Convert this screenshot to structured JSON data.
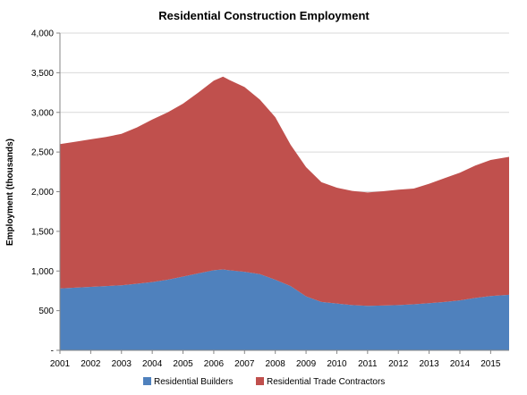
{
  "chart_data": {
    "type": "area",
    "stacked": true,
    "title": "Residential Construction Employment",
    "xlabel": "",
    "ylabel": "Employment (thousands)",
    "ylim": [
      0,
      4000
    ],
    "xlim": [
      2001,
      2015.6
    ],
    "y_ticks": [
      0,
      500,
      1000,
      1500,
      2000,
      2500,
      3000,
      3500,
      4000
    ],
    "y_tick_labels": [
      "-",
      "500",
      "1,000",
      "1,500",
      "2,000",
      "2,500",
      "3,000",
      "3,500",
      "4,000"
    ],
    "x_ticks": [
      2001,
      2002,
      2003,
      2004,
      2005,
      2006,
      2007,
      2008,
      2009,
      2010,
      2011,
      2012,
      2013,
      2014,
      2015
    ],
    "x_tick_labels": [
      "2001",
      "2002",
      "2003",
      "2004",
      "2005",
      "2006",
      "2007",
      "2008",
      "2009",
      "2010",
      "2011",
      "2012",
      "2013",
      "2014",
      "2015"
    ],
    "grid": "horizontal",
    "legend": "bottom",
    "x": [
      2001,
      2001.5,
      2002,
      2002.5,
      2003,
      2003.5,
      2004,
      2004.5,
      2005,
      2005.5,
      2006,
      2006.3,
      2006.5,
      2007,
      2007.5,
      2008,
      2008.5,
      2009,
      2009.5,
      2010,
      2010.5,
      2011,
      2011.5,
      2012,
      2012.5,
      2013,
      2013.5,
      2014,
      2014.5,
      2015,
      2015.6
    ],
    "series": [
      {
        "name": "Residential Builders",
        "color": "#4f81bd",
        "values": [
          780,
          790,
          800,
          810,
          820,
          840,
          860,
          890,
          930,
          970,
          1010,
          1020,
          1010,
          990,
          960,
          890,
          810,
          680,
          610,
          590,
          570,
          560,
          565,
          570,
          580,
          595,
          610,
          630,
          660,
          685,
          700
        ]
      },
      {
        "name": "Residential Trade Contractors",
        "color": "#c0504d",
        "values": [
          1820,
          1840,
          1860,
          1880,
          1910,
          1970,
          2050,
          2110,
          2180,
          2280,
          2390,
          2430,
          2400,
          2330,
          2200,
          2050,
          1780,
          1630,
          1510,
          1460,
          1440,
          1430,
          1440,
          1455,
          1460,
          1505,
          1560,
          1610,
          1670,
          1715,
          1740
        ]
      }
    ]
  }
}
